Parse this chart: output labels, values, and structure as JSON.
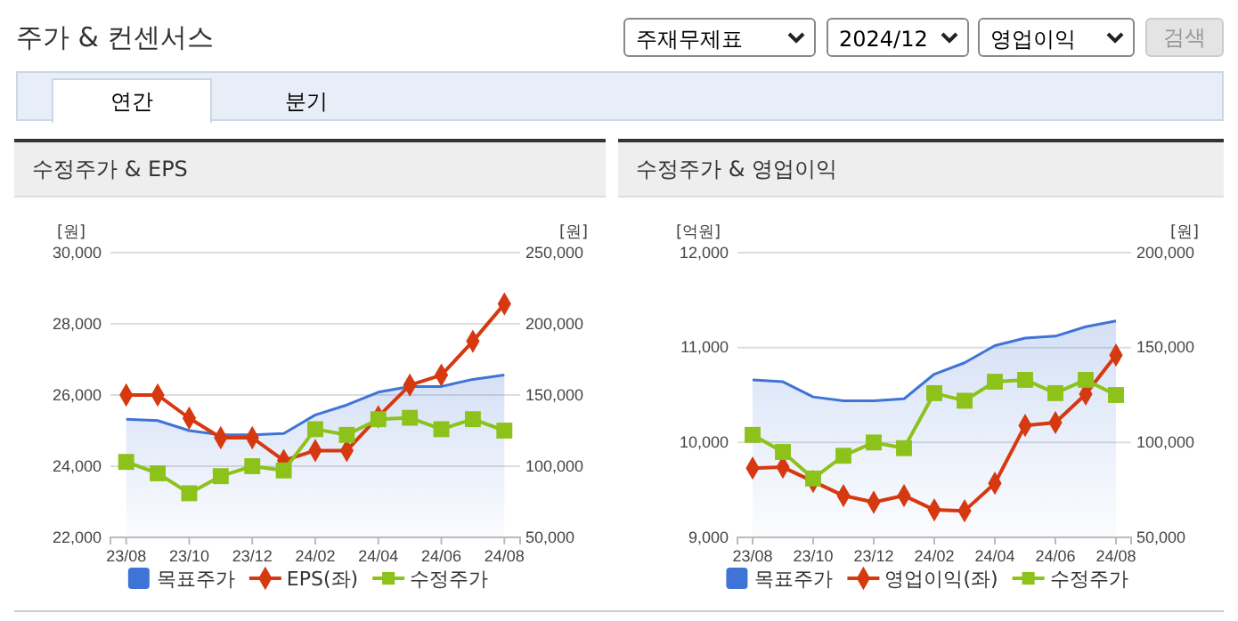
{
  "chart_data": [
    {
      "type": "line",
      "title": "수정주가 & EPS",
      "ylabel": "[원]",
      "y2label": "[원]",
      "annotations": [
        "주가 & 컨센서스",
        "주재무제표",
        "2024/12",
        "영업이익",
        "검색",
        "연간",
        "분기"
      ],
      "categories": [
        "23/08",
        null,
        "23/10",
        null,
        "23/12",
        null,
        "24/02",
        null,
        "24/04",
        null,
        "24/06",
        null,
        "24/08"
      ],
      "series": [
        {
          "name": "목표주가",
          "type": "area",
          "axis": "y2",
          "color": "#3f73d6",
          "marker": "none",
          "values": [
            133000,
            132000,
            125000,
            122000,
            122000,
            123000,
            136000,
            143000,
            152000,
            156000,
            156000,
            161000,
            164000
          ]
        },
        {
          "name": "EPS(좌)",
          "type": "line",
          "color": "#d6380f",
          "marker": "diamond",
          "values": [
            26000,
            26000,
            25350,
            24800,
            24800,
            24160,
            24440,
            24440,
            25390,
            26280,
            26560,
            27510,
            28560
          ]
        },
        {
          "name": "수정주가",
          "type": "line",
          "axis": "y2",
          "color": "#8cc21a",
          "marker": "square",
          "values": [
            103000,
            95000,
            81000,
            93000,
            100000,
            97000,
            126000,
            122000,
            133000,
            134000,
            126000,
            133000,
            125000
          ]
        }
      ],
      "ylim": [
        22000,
        30000
      ],
      "yticks": [
        {
          "value": 22000,
          "label": "22,000"
        },
        {
          "value": 24000,
          "label": "24,000"
        },
        {
          "value": 26000,
          "label": "26,000"
        },
        {
          "value": 28000,
          "label": "28,000"
        },
        {
          "value": 30000,
          "label": "30,000"
        }
      ],
      "y2lim": [
        50000,
        250000
      ],
      "y2ticks": [
        {
          "value": 50000,
          "label": "50,000"
        },
        {
          "value": 100000,
          "label": "100,000"
        },
        {
          "value": 150000,
          "label": "150,000"
        },
        {
          "value": 200000,
          "label": "200,000"
        },
        {
          "value": 250000,
          "label": "250,000"
        }
      ],
      "grid": "y",
      "legend": "bottom",
      "line_style": "solid"
    },
    {
      "type": "line",
      "title": "수정주가 & 영업이익",
      "ylabel": "[억원]",
      "y2label": "[원]",
      "categories": [
        "23/08",
        null,
        "23/10",
        null,
        "23/12",
        null,
        "24/02",
        null,
        "24/04",
        null,
        "24/06",
        null,
        "24/08"
      ],
      "series": [
        {
          "name": "목표주가",
          "type": "area",
          "axis": "y2",
          "color": "#3f73d6",
          "marker": "none",
          "values": [
            133000,
            132000,
            124000,
            122000,
            122000,
            123000,
            136000,
            142000,
            151000,
            155000,
            156000,
            161000,
            164000
          ]
        },
        {
          "name": "영업이익(좌)",
          "type": "line",
          "color": "#d6380f",
          "marker": "diamond",
          "values": [
            9730,
            9740,
            9590,
            9440,
            9370,
            9440,
            9290,
            9280,
            9570,
            10180,
            10210,
            10510,
            10920
          ]
        },
        {
          "name": "수정주가",
          "type": "line",
          "axis": "y2",
          "color": "#8cc21a",
          "marker": "square",
          "values": [
            104000,
            95000,
            81000,
            93000,
            100000,
            97000,
            126000,
            122000,
            132000,
            133000,
            126000,
            133000,
            125000
          ]
        }
      ],
      "ylim": [
        9000,
        12000
      ],
      "yticks": [
        {
          "value": 9000,
          "label": "9,000"
        },
        {
          "value": 10000,
          "label": "10,000"
        },
        {
          "value": 11000,
          "label": "11,000"
        },
        {
          "value": 12000,
          "label": "12,000"
        }
      ],
      "y2lim": [
        50000,
        200000
      ],
      "y2ticks": [
        {
          "value": 50000,
          "label": "50,000"
        },
        {
          "value": 100000,
          "label": "100,000"
        },
        {
          "value": 150000,
          "label": "150,000"
        },
        {
          "value": 200000,
          "label": "200,000"
        }
      ],
      "grid": "y",
      "legend": "bottom",
      "line_style": "solid"
    }
  ]
}
